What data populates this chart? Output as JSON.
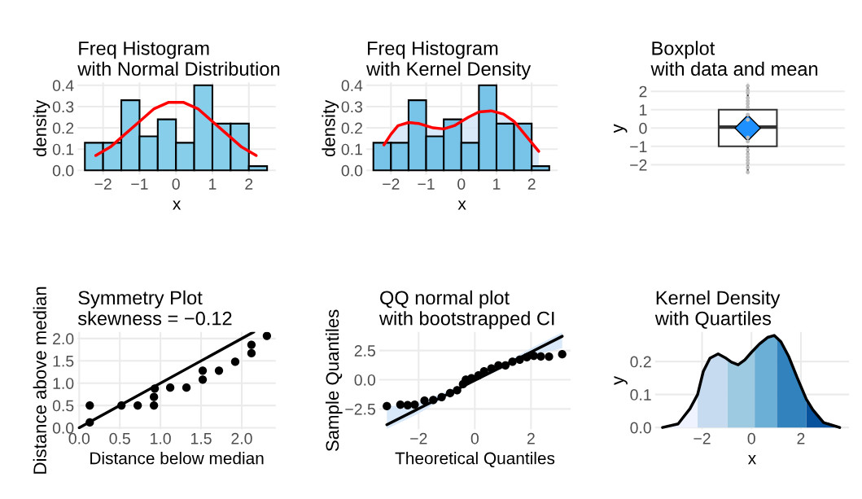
{
  "chart_data": [
    {
      "type": "histogram",
      "title": "Freq Histogram\nwith Normal Distribution",
      "xlabel": "x",
      "ylabel": "density",
      "bins": [
        -2.5,
        -2.0,
        -1.5,
        -1.0,
        -0.5,
        0.0,
        0.5,
        1.0,
        1.5,
        2.0,
        2.5
      ],
      "values": [
        0.13,
        0.13,
        0.33,
        0.16,
        0.24,
        0.13,
        0.4,
        0.22,
        0.22,
        0.02
      ],
      "color": "#87ceeb",
      "series": [
        {
          "type": "line",
          "color": "#ff0000",
          "x": [
            -2.2,
            -1.8,
            -1.4,
            -1.0,
            -0.6,
            -0.2,
            0.0,
            0.2,
            0.6,
            1.0,
            1.4,
            1.8,
            2.2
          ],
          "values": [
            0.07,
            0.11,
            0.17,
            0.23,
            0.29,
            0.32,
            0.32,
            0.32,
            0.29,
            0.23,
            0.17,
            0.11,
            0.07
          ]
        }
      ],
      "xlim": [
        -2.7,
        2.74
      ],
      "ylim": [
        -0.02,
        0.414
      ],
      "xticks": [
        {
          "value": -2,
          "label": "−2"
        },
        {
          "value": -1,
          "label": "−1"
        },
        0,
        1,
        2
      ],
      "yticks": [
        {
          "value": 0,
          "label": "0.0"
        },
        0.1,
        0.2,
        0.3,
        0.4
      ],
      "grid": true
    },
    {
      "type": "histogram",
      "title": "Freq Histogram\nwith Kernel Density",
      "xlabel": "x",
      "ylabel": "density",
      "bins": [
        -2.5,
        -2.0,
        -1.5,
        -1.0,
        -0.5,
        0.0,
        0.5,
        1.0,
        1.5,
        2.0,
        2.5
      ],
      "values": [
        0.13,
        0.13,
        0.33,
        0.16,
        0.24,
        0.13,
        0.4,
        0.22,
        0.22,
        0.02
      ],
      "color": "#78c4e8",
      "series": [
        {
          "type": "line",
          "color": "#ff0000",
          "x": [
            -2.2,
            -2.0,
            -1.8,
            -1.5,
            -1.2,
            -0.8,
            -0.5,
            -0.2,
            0.2,
            0.5,
            0.85,
            1.2,
            1.5,
            1.8,
            2.0,
            2.2
          ],
          "values": [
            0.12,
            0.17,
            0.21,
            0.225,
            0.22,
            0.2,
            0.195,
            0.21,
            0.25,
            0.275,
            0.28,
            0.265,
            0.23,
            0.17,
            0.13,
            0.09
          ],
          "lower": [
            0,
            0,
            0,
            0,
            0,
            0,
            0,
            0,
            0,
            0,
            0,
            0,
            0,
            0,
            0,
            0
          ],
          "upper": [
            0.12,
            0.17,
            0.21,
            0.225,
            0.22,
            0.2,
            0.195,
            0.21,
            0.25,
            0.275,
            0.28,
            0.265,
            0.23,
            0.17,
            0.13,
            0.09
          ]
        }
      ],
      "xlim": [
        -2.7,
        2.74
      ],
      "ylim": [
        -0.02,
        0.414
      ],
      "xticks": [
        {
          "value": -2,
          "label": "−2"
        },
        {
          "value": -1,
          "label": "−1"
        },
        0,
        1,
        2
      ],
      "yticks": [
        {
          "value": 0,
          "label": "0.0"
        },
        0.1,
        0.2,
        0.3,
        0.4
      ],
      "grid": true
    },
    {
      "type": "box",
      "title": "Boxplot\nwith data and mean",
      "ylabel": "y",
      "categories": [
        null
      ],
      "color": "#ffffff",
      "boxes": [
        {
          "low": -2.4,
          "q1": -1.0,
          "median": 0.05,
          "q3": 1.0,
          "high": 2.3,
          "mean": 0.0
        }
      ],
      "series": [
        {
          "type": "scatter",
          "color": "#bebebe",
          "marker": "circle",
          "x": [
            null,
            null,
            null,
            null,
            null,
            null,
            null,
            null,
            null,
            null,
            null,
            null,
            null,
            null,
            null,
            null,
            null,
            null
          ],
          "values": [
            2.3,
            2.07,
            1.92,
            1.64,
            1.47,
            1.32,
            1.13,
            0.73,
            0.45,
            -0.51,
            -0.73,
            -1.19,
            -1.41,
            -1.58,
            -1.75,
            -1.92,
            -2.15,
            -2.41
          ]
        }
      ],
      "ylim": [
        -2.54,
        2.49
      ],
      "yticks": [
        {
          "value": -2,
          "label": "−2"
        },
        {
          "value": -1,
          "label": "−1"
        },
        0,
        1,
        2
      ],
      "tick_labels": "y",
      "grid": true
    },
    {
      "type": "scatter",
      "title": "Symmetry Plot\nskewness = −0.12",
      "xlabel": "Distance below median",
      "ylabel": "Distance above median",
      "series": [
        {
          "color": "#000000",
          "marker": "circle",
          "x": [
            0.13,
            0.13,
            0.52,
            0.72,
            0.92,
            0.92,
            0.93,
            1.12,
            1.32,
            1.52,
            1.52,
            1.72,
            1.92,
            2.12,
            2.12,
            2.31
          ],
          "values": [
            0.5,
            0.12,
            0.5,
            0.5,
            0.5,
            0.69,
            0.88,
            0.9,
            0.9,
            1.08,
            1.28,
            1.28,
            1.48,
            1.67,
            1.86,
            2.06
          ]
        },
        {
          "type": "line",
          "color": "#000000",
          "x": [
            0.0,
            2.15
          ],
          "values": [
            0.0,
            2.15
          ]
        }
      ],
      "xlim": [
        -0.02,
        2.42
      ],
      "ylim": [
        -0.03,
        2.15
      ],
      "xticks": [
        {
          "value": 0,
          "label": "0.0"
        },
        0.5,
        {
          "value": 1,
          "label": "1.0"
        },
        1.5,
        {
          "value": 2,
          "label": "2.0"
        }
      ],
      "yticks": [
        {
          "value": 0,
          "label": "0.0"
        },
        0.5,
        {
          "value": 1,
          "label": "1.0"
        },
        1.5,
        {
          "value": 2,
          "label": "2.0"
        }
      ],
      "grid": true
    },
    {
      "type": "scatter",
      "title": "QQ normal plot\nwith bootstrapped CI",
      "xlabel": "Theoretical Quantiles",
      "ylabel": "Sample Quantiles",
      "series": [
        {
          "type": "line",
          "color": "#000000",
          "x": [
            -3.13,
            -2,
            -1,
            0,
            1,
            2,
            3.11
          ],
          "values": [
            -3.85,
            -2.48,
            -1.27,
            -0.05,
            1.16,
            2.37,
            3.72
          ],
          "lower": [
            -4.2,
            -2.9,
            -1.45,
            -0.15,
            0.95,
            2.05,
            2.7
          ],
          "upper": [
            -2.3,
            -2.0,
            -1.0,
            0.05,
            1.35,
            2.7,
            4.05
          ]
        },
        {
          "color": "#000000",
          "marker": "circle",
          "x": [
            -3.13,
            -2.65,
            -2.39,
            -2.14,
            -1.79,
            -1.48,
            -1.18,
            -0.88,
            -0.63,
            -0.42,
            -0.32,
            -0.12,
            0.13,
            0.33,
            0.59,
            0.84,
            1.09,
            1.34,
            1.6,
            1.85,
            2.1,
            2.35,
            2.64,
            3.11
          ],
          "values": [
            -2.26,
            -2.13,
            -2.18,
            -2.13,
            -1.79,
            -1.74,
            -1.49,
            -1.15,
            -0.9,
            -0.38,
            0.0,
            0.13,
            0.38,
            0.72,
            0.97,
            1.23,
            1.23,
            1.54,
            1.72,
            1.92,
            2.05,
            2.0,
            1.97,
            2.18
          ]
        }
      ],
      "xlim": [
        -3.4,
        3.41
      ],
      "ylim": [
        -4.23,
        4.1
      ],
      "xticks": [
        {
          "value": -2,
          "label": "−2"
        },
        0,
        2
      ],
      "yticks": [
        {
          "value": -2.5,
          "label": "−2.5"
        },
        {
          "value": 0,
          "label": "0.0"
        },
        2.5
      ],
      "grid": true
    },
    {
      "type": "area",
      "title": "Kernel Density\nwith Quartiles",
      "xlabel": "x",
      "ylabel": "y",
      "series": [
        {
          "color": "#eff3ff",
          "x": [
            -3.6,
            -2.97,
            -2.49,
            -2.18
          ],
          "values": [
            0.0,
            0.011,
            0.057,
            0.1
          ]
        },
        {
          "color": "#c6dbef",
          "x": [
            -2.18,
            -1.95,
            -1.68,
            -1.35,
            -1.03,
            -0.97
          ],
          "values": [
            0.1,
            0.17,
            0.21,
            0.223,
            0.21,
            0.207
          ]
        },
        {
          "color": "#9ecae1",
          "x": [
            -0.97,
            -0.81,
            -0.54,
            -0.27,
            0.0,
            0.13
          ],
          "values": [
            0.207,
            0.198,
            0.19,
            0.205,
            0.228,
            0.24
          ]
        },
        {
          "color": "#6baed6",
          "x": [
            0.13,
            0.32,
            0.65,
            0.92,
            1.03
          ],
          "values": [
            0.24,
            0.253,
            0.273,
            0.279,
            0.275
          ]
        },
        {
          "color": "#3182bd",
          "x": [
            1.03,
            1.19,
            1.51,
            1.84,
            2.22
          ],
          "values": [
            0.275,
            0.26,
            0.215,
            0.153,
            0.086
          ]
        },
        {
          "color": "#08519c",
          "x": [
            2.22,
            2.49,
            2.92,
            3.57
          ],
          "values": [
            0.086,
            0.053,
            0.015,
            0.0
          ]
        },
        {
          "type": "line",
          "color": "#000000",
          "x": [
            -3.6,
            -2.97,
            -2.49,
            -2.18,
            -1.95,
            -1.68,
            -1.35,
            -1.03,
            -0.81,
            -0.54,
            -0.27,
            0.0,
            0.32,
            0.65,
            0.92,
            1.19,
            1.51,
            1.84,
            2.22,
            2.49,
            2.92,
            3.57
          ],
          "values": [
            0.0,
            0.011,
            0.057,
            0.1,
            0.17,
            0.21,
            0.223,
            0.21,
            0.198,
            0.19,
            0.205,
            0.228,
            0.253,
            0.273,
            0.279,
            0.26,
            0.215,
            0.153,
            0.086,
            0.053,
            0.015,
            0.0
          ]
        }
      ],
      "xlim": [
        -3.9,
        3.95
      ],
      "ylim": [
        -0.005,
        0.29
      ],
      "xticks": [
        {
          "value": -2,
          "label": "−2"
        },
        0,
        2
      ],
      "yticks": [
        {
          "value": 0,
          "label": "0.0"
        },
        0.1,
        0.2
      ],
      "grid": true
    }
  ]
}
